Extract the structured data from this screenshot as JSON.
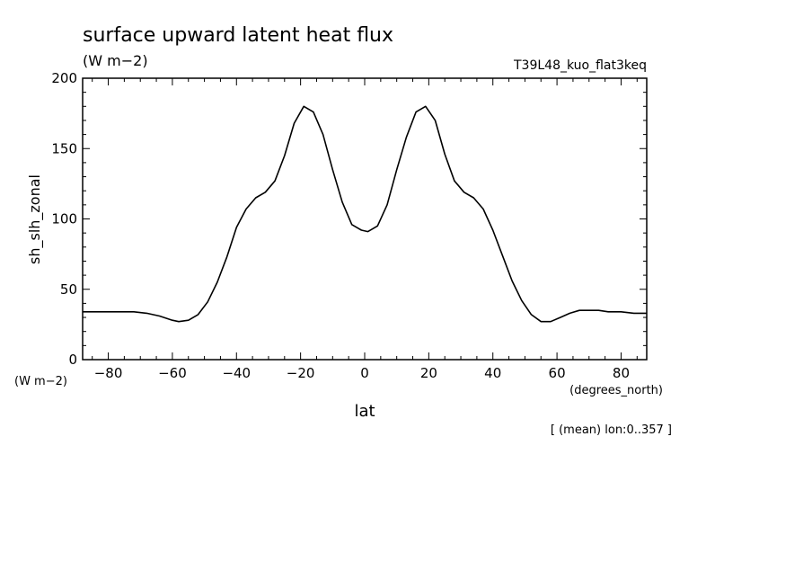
{
  "header": {
    "title": "surface upward latent heat flux",
    "units": "(W m−2)",
    "dataset": "T39L48_kuo_flat3keq"
  },
  "footer": {
    "y_units": "(W m−2)",
    "x_units": "(degrees_north)",
    "averaging_note": "[ (mean) lon:0..357 ]"
  },
  "chart_data": {
    "type": "line",
    "xlabel": "lat",
    "ylabel": "sh_slh_zonal",
    "xlim": [
      -88,
      88
    ],
    "ylim": [
      0,
      200
    ],
    "x_ticks": [
      -80,
      -60,
      -40,
      -20,
      0,
      20,
      40,
      60,
      80
    ],
    "y_ticks": [
      0,
      50,
      100,
      150,
      200
    ],
    "grid": false,
    "series": [
      {
        "x": [
          -88,
          -84,
          -80,
          -76,
          -72,
          -68,
          -64,
          -60,
          -58,
          -55,
          -52,
          -49,
          -46,
          -43,
          -40,
          -37,
          -34,
          -31,
          -28,
          -25,
          -22,
          -19,
          -16,
          -13,
          -10,
          -7,
          -4,
          -1,
          1,
          4,
          7,
          10,
          13,
          16,
          19,
          22,
          25,
          28,
          31,
          34,
          37,
          40,
          43,
          46,
          49,
          52,
          55,
          58,
          61,
          64,
          67,
          70,
          73,
          76,
          80,
          84,
          88
        ],
        "y": [
          34,
          34,
          34,
          34,
          34,
          33,
          31,
          28,
          27,
          28,
          32,
          41,
          55,
          73,
          94,
          107,
          115,
          119,
          127,
          145,
          168,
          180,
          176,
          160,
          135,
          112,
          96,
          92,
          91,
          95,
          110,
          135,
          158,
          176,
          180,
          170,
          146,
          127,
          119,
          115,
          107,
          92,
          74,
          56,
          42,
          32,
          27,
          27,
          30,
          33,
          35,
          35,
          35,
          34,
          34,
          33,
          33
        ]
      }
    ]
  }
}
